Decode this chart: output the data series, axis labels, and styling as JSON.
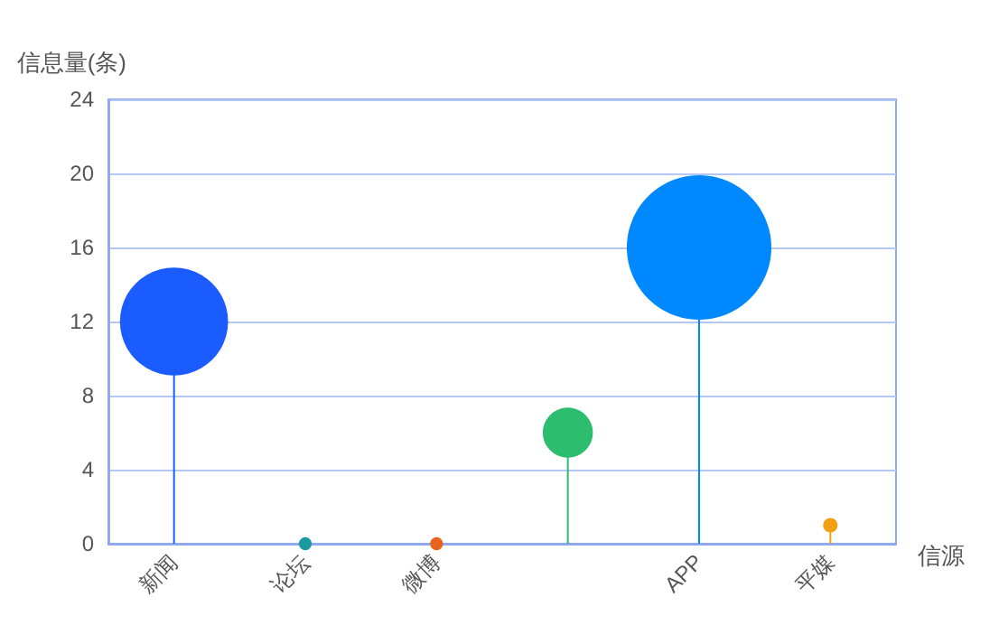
{
  "chart_data": {
    "type": "lollipop",
    "ylabel": "信息量(条)",
    "xlabel": "信源",
    "categories": [
      "新闻",
      "论坛",
      "微博",
      null,
      "APP",
      "平媒"
    ],
    "values": [
      12,
      0,
      0,
      6,
      16,
      1
    ],
    "sizes": [
      0.56,
      0.008,
      0.008,
      0.12,
      1,
      0.01
    ],
    "colors": [
      "#1a5cff",
      "#1a9aa0",
      "#e8641e",
      "#2dbd6e",
      "#0088ff",
      "#f0a010"
    ],
    "ylim": [
      0,
      24
    ],
    "yticks": [
      0,
      4,
      8,
      12,
      16,
      20,
      24
    ],
    "grid": "y",
    "marker": "circle"
  }
}
